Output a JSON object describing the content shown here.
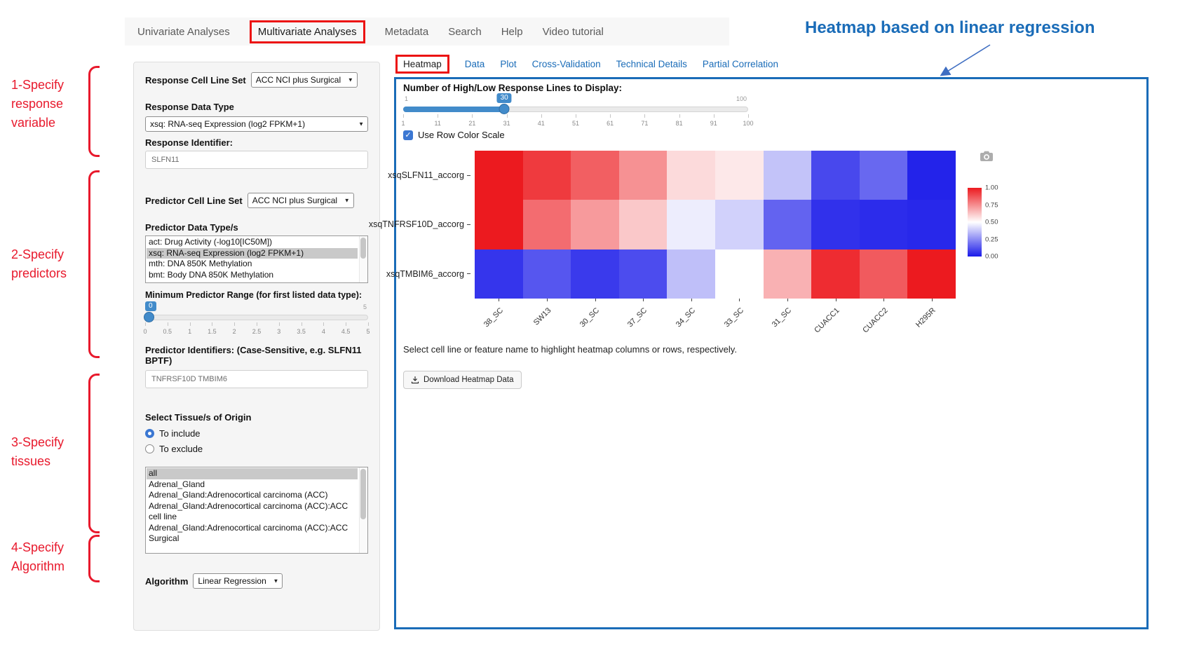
{
  "nav": {
    "items": [
      {
        "label": "Univariate Analyses"
      },
      {
        "label": "Multivariate Analyses",
        "active": true
      },
      {
        "label": "Metadata"
      },
      {
        "label": "Search"
      },
      {
        "label": "Help"
      },
      {
        "label": "Video tutorial"
      }
    ]
  },
  "annotations": {
    "heading": "Heatmap based on linear regression",
    "steps": [
      {
        "label": "1-Specify response variable"
      },
      {
        "label": "2-Specify predictors"
      },
      {
        "label": "3-Specify tissues"
      },
      {
        "label": "4-Specify Algorithm"
      }
    ]
  },
  "sidebar": {
    "response_cell_line_set": {
      "label": "Response Cell Line Set",
      "value": "ACC NCI plus Surgical"
    },
    "response_data_type": {
      "label": "Response Data Type",
      "value": "xsq: RNA-seq Expression (log2 FPKM+1)"
    },
    "response_identifier": {
      "label": "Response Identifier:",
      "value": "SLFN11"
    },
    "predictor_cell_line_set": {
      "label": "Predictor Cell Line Set",
      "value": "ACC NCI plus Surgical"
    },
    "predictor_data_types": {
      "label": "Predictor Data Type/s",
      "options": [
        {
          "label": "act: Drug Activity (-log10[IC50M])",
          "selected": false
        },
        {
          "label": "xsq: RNA-seq Expression (log2 FPKM+1)",
          "selected": true
        },
        {
          "label": "mth: DNA 850K Methylation",
          "selected": false
        },
        {
          "label": "bmt: Body DNA 850K Methylation",
          "selected": false
        }
      ]
    },
    "min_predictor_range": {
      "label": "Minimum Predictor Range (for first listed data type):",
      "value": "0",
      "min": "0",
      "max": "5",
      "ticks": [
        "0",
        "0.5",
        "1",
        "1.5",
        "2",
        "2.5",
        "3",
        "3.5",
        "4",
        "4.5",
        "5"
      ]
    },
    "predictor_identifiers": {
      "label": "Predictor Identifiers: (Case-Sensitive, e.g. SLFN11 BPTF)",
      "value": "TNFRSF10D TMBIM6"
    },
    "tissue": {
      "label": "Select Tissue/s of Origin",
      "radios": [
        {
          "label": "To include",
          "checked": true
        },
        {
          "label": "To exclude",
          "checked": false
        }
      ],
      "options": [
        {
          "label": "all",
          "selected": true
        },
        {
          "label": "Adrenal_Gland",
          "selected": false
        },
        {
          "label": "Adrenal_Gland:Adrenocortical carcinoma (ACC)",
          "selected": false
        },
        {
          "label": "Adrenal_Gland:Adrenocortical carcinoma (ACC):ACC cell line",
          "selected": false
        },
        {
          "label": "Adrenal_Gland:Adrenocortical carcinoma (ACC):ACC Surgical",
          "selected": false
        }
      ]
    },
    "algorithm": {
      "label": "Algorithm",
      "value": "Linear Regression"
    }
  },
  "main": {
    "tabs": [
      {
        "label": "Heatmap",
        "active": true
      },
      {
        "label": "Data"
      },
      {
        "label": "Plot"
      },
      {
        "label": "Cross-Validation"
      },
      {
        "label": "Technical Details"
      },
      {
        "label": "Partial Correlation"
      }
    ],
    "lines_slider": {
      "label": "Number of High/Low Response Lines to Display:",
      "min": "1",
      "max": "100",
      "value": "30",
      "ticks": [
        "1",
        "11",
        "21",
        "31",
        "41",
        "51",
        "61",
        "71",
        "81",
        "91",
        "100"
      ]
    },
    "row_color_scale_label": "Use Row Color Scale",
    "hint": "Select cell line or feature name to highlight heatmap columns or rows, respectively.",
    "download_button": "Download Heatmap Data"
  },
  "chart_data": {
    "type": "heatmap",
    "rows": [
      "xsqSLFN11_accorg",
      "xsqTNFRSF10D_accorg",
      "xsqTMBIM6_accorg"
    ],
    "columns": [
      "38_SC",
      "SW13",
      "30_SC",
      "37_SC",
      "34_SC",
      "33_SC",
      "31_SC",
      "CUACC1",
      "CUACC2",
      "H295R"
    ],
    "values": [
      [
        1.0,
        0.93,
        0.85,
        0.74,
        0.58,
        0.55,
        0.37,
        0.1,
        0.17,
        0.02
      ],
      [
        1.0,
        0.82,
        0.72,
        0.62,
        0.46,
        0.4,
        0.16,
        0.05,
        0.04,
        0.03
      ],
      [
        0.06,
        0.13,
        0.07,
        0.11,
        0.36,
        0.5,
        0.67,
        0.96,
        0.86,
        1.0
      ]
    ],
    "value_range": [
      0,
      1
    ],
    "colorbar": {
      "ticks": [
        "1.00",
        "0.75",
        "0.50",
        "0.25",
        "0.00"
      ],
      "high_color": "#ec1a1f",
      "mid_color": "#ffffff",
      "low_color": "#1a1ae9",
      "position": "right"
    }
  }
}
